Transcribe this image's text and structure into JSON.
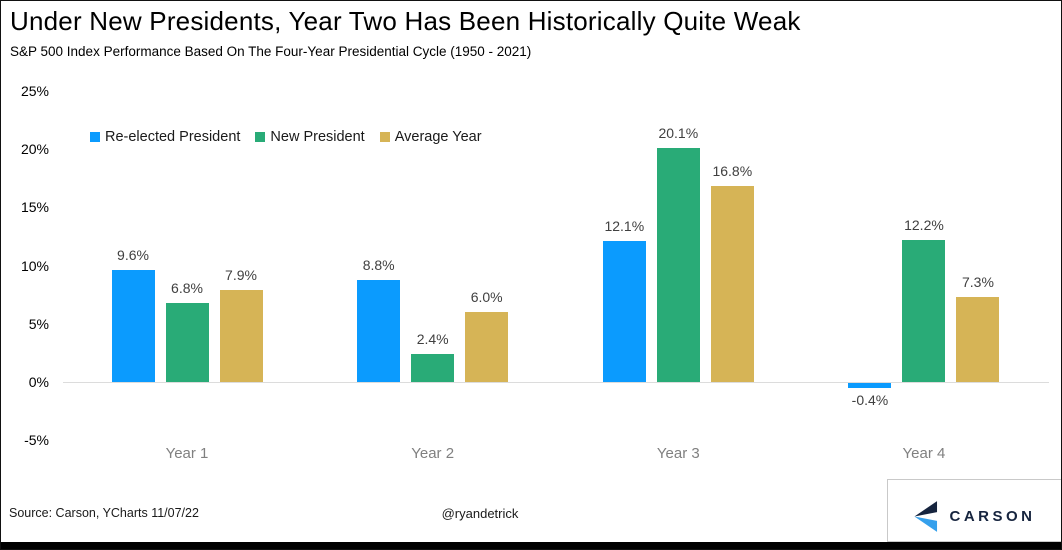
{
  "header": {
    "title": "Under New Presidents, Year Two Has Been Historically Quite Weak",
    "subtitle": "S&P 500 Index Performance Based On The Four-Year Presidential Cycle (1950 - 2021)"
  },
  "chart_data": {
    "type": "bar",
    "categories": [
      "Year 1",
      "Year 2",
      "Year 3",
      "Year 4"
    ],
    "series": [
      {
        "name": "Re-elected President",
        "color": "#0b9bfe",
        "values": [
          9.6,
          8.8,
          12.1,
          -0.4
        ],
        "data_labels": [
          "9.6%",
          "8.8%",
          "12.1%",
          "-0.4%"
        ]
      },
      {
        "name": "New President",
        "color": "#29ab77",
        "values": [
          6.8,
          2.4,
          20.1,
          12.2
        ],
        "data_labels": [
          "6.8%",
          "2.4%",
          "20.1%",
          "12.2%"
        ]
      },
      {
        "name": "Average Year",
        "color": "#d6b456",
        "values": [
          7.9,
          6.0,
          16.8,
          7.3
        ],
        "data_labels": [
          "7.9%",
          "6.0%",
          "16.8%",
          "7.3%"
        ]
      }
    ],
    "y_ticks": [
      "25%",
      "20%",
      "15%",
      "10%",
      "5%",
      "0%",
      "-5%"
    ],
    "y_tick_values": [
      25,
      20,
      15,
      10,
      5,
      0,
      -5
    ],
    "ylim": [
      -5,
      25
    ],
    "grid": false,
    "legend_position": "top-left",
    "title": "Under New Presidents, Year Two Has Been Historically Quite Weak",
    "xlabel": "",
    "ylabel": ""
  },
  "footer": {
    "source": "Source: Carson, YCharts 11/07/22",
    "handle": "@ryandetrick",
    "logo_text": "CARSON"
  },
  "colors": {
    "blue": "#0b9bfe",
    "green": "#29ab77",
    "gold": "#d6b456",
    "zero_line": "#dcdcdc",
    "data_label": "#404040",
    "category_label": "#808080",
    "logo_navy": "#16243e",
    "logo_blue": "#35a0ec"
  }
}
